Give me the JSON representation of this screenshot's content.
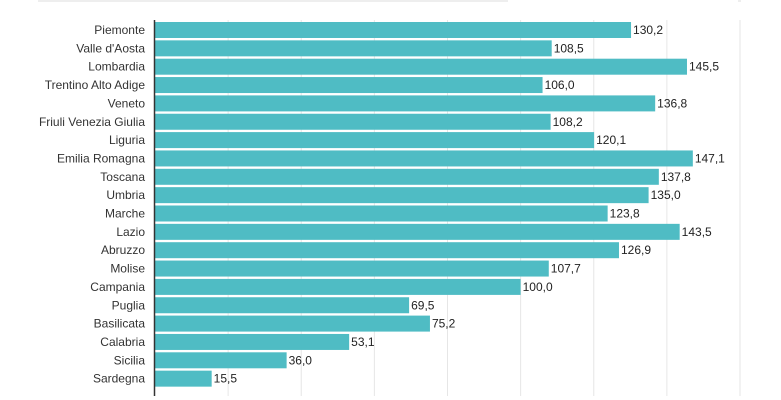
{
  "chart_data": {
    "type": "bar",
    "orientation": "horizontal",
    "categories": [
      "Piemonte",
      "Valle d'Aosta",
      "Lombardia",
      "Trentino Alto Adige",
      "Veneto",
      "Friuli Venezia Giulia",
      "Liguria",
      "Emilia Romagna",
      "Toscana",
      "Umbria",
      "Marche",
      "Lazio",
      "Abruzzo",
      "Molise",
      "Campania",
      "Puglia",
      "Basilicata",
      "Calabria",
      "Sicilia",
      "Sardegna"
    ],
    "values": [
      130.2,
      108.5,
      145.5,
      106.0,
      136.8,
      108.2,
      120.1,
      147.1,
      137.8,
      135.0,
      123.8,
      143.5,
      126.9,
      107.7,
      100.0,
      69.5,
      75.2,
      53.1,
      36.0,
      15.5
    ],
    "value_labels": [
      "130,2",
      "108,5",
      "145,5",
      "106,0",
      "136,8",
      "108,2",
      "120,1",
      "147,1",
      "137,8",
      "135,0",
      "123,8",
      "143,5",
      "126,9",
      "107,7",
      "100,0",
      "69,5",
      "75,2",
      "53,1",
      "36,0",
      "15,5"
    ],
    "xlim": [
      0,
      160
    ],
    "grid": true,
    "bar_color": "#4fbcc4",
    "title": "",
    "xlabel": "",
    "ylabel": ""
  }
}
